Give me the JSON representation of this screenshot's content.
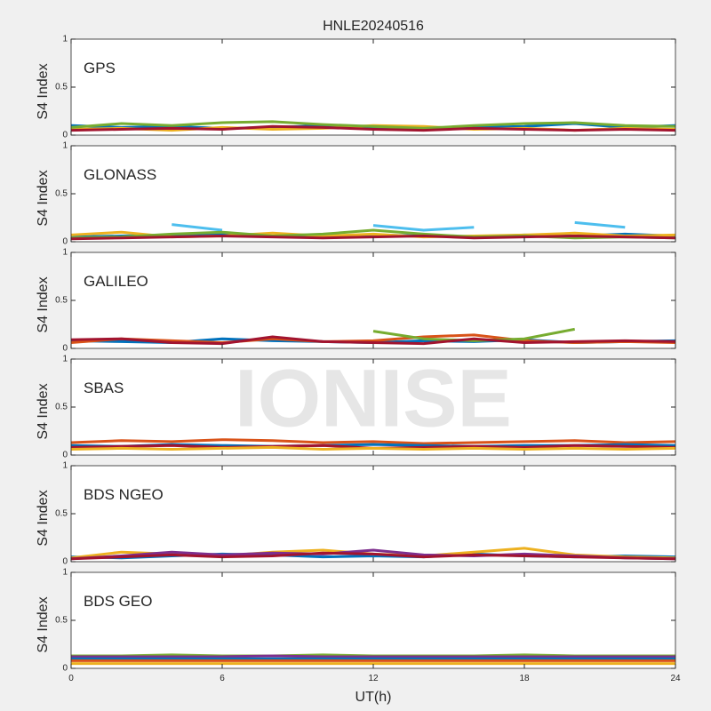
{
  "watermark": "IONISE",
  "chart_data": [
    {
      "type": "line",
      "title": "HNLE20240516",
      "label": "GPS",
      "ylabel": "S4 Index",
      "x": [
        0,
        2,
        4,
        6,
        8,
        10,
        12,
        14,
        16,
        18,
        20,
        22,
        24
      ],
      "xlim": [
        0,
        24
      ],
      "xticks": [
        0,
        6,
        12,
        18,
        24
      ],
      "ylim": [
        0,
        1
      ],
      "yticks": [
        0,
        0.5,
        1
      ],
      "series": [
        {
          "color": "#0072bd",
          "values": [
            0.1,
            0.08,
            0.09,
            0.07,
            0.08,
            0.1,
            0.07,
            0.06,
            0.08,
            0.09,
            0.12,
            0.08,
            0.1
          ]
        },
        {
          "color": "#edb120",
          "values": [
            0.06,
            0.07,
            0.05,
            0.08,
            0.06,
            0.07,
            0.1,
            0.09,
            0.06,
            0.07,
            0.05,
            0.07,
            0.06
          ]
        },
        {
          "color": "#77ac30",
          "values": [
            0.08,
            0.12,
            0.1,
            0.13,
            0.14,
            0.11,
            0.09,
            0.07,
            0.1,
            0.12,
            0.13,
            0.1,
            0.09
          ]
        },
        {
          "color": "#a2142f",
          "values": [
            0.05,
            0.06,
            0.07,
            0.06,
            0.09,
            0.08,
            0.06,
            0.05,
            0.07,
            0.06,
            0.05,
            0.06,
            0.05
          ]
        }
      ]
    },
    {
      "type": "line",
      "label": "GLONASS",
      "ylabel": "S4 Index",
      "x": [
        0,
        2,
        4,
        6,
        8,
        10,
        12,
        14,
        16,
        18,
        20,
        22,
        24
      ],
      "xlim": [
        0,
        24
      ],
      "xticks": [
        0,
        6,
        12,
        18,
        24
      ],
      "ylim": [
        0,
        1
      ],
      "yticks": [
        0,
        0.5,
        1
      ],
      "series": [
        {
          "color": "#0072bd",
          "values": [
            0.05,
            0.06,
            0.07,
            0.08,
            0.06,
            0.05,
            0.07,
            0.06,
            0.05,
            0.07,
            0.06,
            0.08,
            0.06
          ]
        },
        {
          "color": "#edb120",
          "values": [
            0.07,
            0.1,
            0.05,
            0.06,
            0.09,
            0.06,
            0.08,
            0.05,
            0.06,
            0.07,
            0.09,
            0.06,
            0.07
          ]
        },
        {
          "color": "#4dbeee",
          "values": [
            null,
            null,
            0.18,
            0.12,
            null,
            null,
            0.17,
            0.12,
            0.15,
            null,
            0.2,
            0.15,
            null
          ]
        },
        {
          "color": "#77ac30",
          "values": [
            0.04,
            0.05,
            0.08,
            0.1,
            0.06,
            0.08,
            0.12,
            0.08,
            0.05,
            0.06,
            0.04,
            0.05,
            0.04
          ]
        },
        {
          "color": "#a2142f",
          "values": [
            0.03,
            0.04,
            0.05,
            0.06,
            0.05,
            0.04,
            0.05,
            0.06,
            0.04,
            0.05,
            0.06,
            0.05,
            0.04
          ]
        }
      ]
    },
    {
      "type": "line",
      "label": "GALILEO",
      "ylabel": "S4 Index",
      "x": [
        0,
        2,
        4,
        6,
        8,
        10,
        12,
        14,
        16,
        18,
        20,
        22,
        24
      ],
      "xlim": [
        0,
        24
      ],
      "xticks": [
        0,
        6,
        12,
        18,
        24
      ],
      "ylim": [
        0,
        1
      ],
      "yticks": [
        0,
        0.5,
        1
      ],
      "series": [
        {
          "color": "#0072bd",
          "values": [
            0.08,
            0.07,
            0.06,
            0.1,
            0.08,
            0.07,
            0.06,
            0.08,
            0.07,
            0.09,
            0.06,
            0.07,
            0.08
          ]
        },
        {
          "color": "#d95319",
          "values": [
            0.06,
            0.1,
            0.08,
            0.06,
            0.1,
            0.07,
            0.08,
            0.12,
            0.14,
            0.08,
            0.06,
            0.07,
            0.06
          ]
        },
        {
          "color": "#77ac30",
          "values": [
            null,
            null,
            null,
            null,
            null,
            null,
            0.18,
            0.1,
            0.08,
            0.1,
            0.2,
            null,
            null
          ]
        },
        {
          "color": "#a2142f",
          "values": [
            0.09,
            0.1,
            0.06,
            0.05,
            0.12,
            0.07,
            0.06,
            0.05,
            0.1,
            0.06,
            0.07,
            0.08,
            0.07
          ]
        }
      ]
    },
    {
      "type": "line",
      "label": "SBAS",
      "ylabel": "S4 Index",
      "x": [
        0,
        2,
        4,
        6,
        8,
        10,
        12,
        14,
        16,
        18,
        20,
        22,
        24
      ],
      "xlim": [
        0,
        24
      ],
      "xticks": [
        0,
        6,
        12,
        18,
        24
      ],
      "ylim": [
        0,
        1
      ],
      "yticks": [
        0,
        0.5,
        1
      ],
      "series": [
        {
          "color": "#d95319",
          "values": [
            0.13,
            0.15,
            0.14,
            0.16,
            0.15,
            0.13,
            0.14,
            0.12,
            0.13,
            0.14,
            0.15,
            0.13,
            0.14
          ]
        },
        {
          "color": "#0072bd",
          "values": [
            0.1,
            0.09,
            0.11,
            0.1,
            0.09,
            0.1,
            0.11,
            0.1,
            0.09,
            0.1,
            0.1,
            0.11,
            0.1
          ]
        },
        {
          "color": "#a2142f",
          "values": [
            0.08,
            0.09,
            0.1,
            0.08,
            0.09,
            0.1,
            0.07,
            0.08,
            0.09,
            0.08,
            0.1,
            0.09,
            0.08
          ]
        },
        {
          "color": "#edb120",
          "values": [
            0.06,
            0.07,
            0.06,
            0.07,
            0.08,
            0.06,
            0.07,
            0.06,
            0.07,
            0.06,
            0.07,
            0.06,
            0.07
          ]
        }
      ]
    },
    {
      "type": "line",
      "label": "BDS NGEO",
      "ylabel": "S4 Index",
      "x": [
        0,
        2,
        4,
        6,
        8,
        10,
        12,
        14,
        16,
        18,
        20,
        22,
        24
      ],
      "xlim": [
        0,
        24
      ],
      "xticks": [
        0,
        6,
        12,
        18,
        24
      ],
      "ylim": [
        0,
        1
      ],
      "yticks": [
        0,
        0.5,
        1
      ],
      "series": [
        {
          "color": "#0072bd",
          "values": [
            0.05,
            0.04,
            0.06,
            0.08,
            0.07,
            0.05,
            0.06,
            0.05,
            0.08,
            0.06,
            0.05,
            0.06,
            0.05
          ]
        },
        {
          "color": "#edb120",
          "values": [
            0.04,
            0.1,
            0.08,
            0.06,
            0.1,
            0.12,
            0.08,
            0.06,
            0.1,
            0.14,
            0.07,
            0.05,
            0.04
          ]
        },
        {
          "color": "#7e2f8e",
          "values": [
            0.03,
            0.06,
            0.1,
            0.07,
            0.09,
            0.08,
            0.12,
            0.07,
            0.06,
            0.08,
            0.06,
            0.04,
            0.03
          ]
        },
        {
          "color": "#a2142f",
          "values": [
            0.03,
            0.05,
            0.07,
            0.05,
            0.06,
            0.09,
            0.08,
            0.05,
            0.07,
            0.06,
            0.05,
            0.04,
            0.03
          ]
        }
      ]
    },
    {
      "type": "line",
      "label": "BDS GEO",
      "ylabel": "S4 Index",
      "xlabel": "UT(h)",
      "x": [
        0,
        2,
        4,
        6,
        8,
        10,
        12,
        14,
        16,
        18,
        20,
        22,
        24
      ],
      "xlim": [
        0,
        24
      ],
      "xticks": [
        0,
        6,
        12,
        18,
        24
      ],
      "ylim": [
        0,
        1
      ],
      "yticks": [
        0,
        0.5,
        1
      ],
      "series": [
        {
          "color": "#77ac30",
          "values": [
            0.13,
            0.13,
            0.14,
            0.13,
            0.13,
            0.14,
            0.13,
            0.13,
            0.13,
            0.14,
            0.13,
            0.13,
            0.13
          ]
        },
        {
          "color": "#7e2f8e",
          "values": [
            0.12,
            0.12,
            0.12,
            0.12,
            0.13,
            0.12,
            0.12,
            0.12,
            0.12,
            0.12,
            0.12,
            0.12,
            0.12
          ]
        },
        {
          "color": "#0072bd",
          "values": [
            0.1,
            0.1,
            0.1,
            0.1,
            0.1,
            0.1,
            0.1,
            0.1,
            0.1,
            0.1,
            0.1,
            0.1,
            0.1
          ]
        },
        {
          "color": "#d95319",
          "values": [
            0.08,
            0.08,
            0.08,
            0.08,
            0.08,
            0.08,
            0.08,
            0.08,
            0.08,
            0.08,
            0.08,
            0.08,
            0.08
          ]
        },
        {
          "color": "#edb120",
          "values": [
            0.05,
            0.05,
            0.05,
            0.05,
            0.05,
            0.05,
            0.05,
            0.05,
            0.05,
            0.05,
            0.05,
            0.05,
            0.05
          ]
        }
      ]
    }
  ]
}
